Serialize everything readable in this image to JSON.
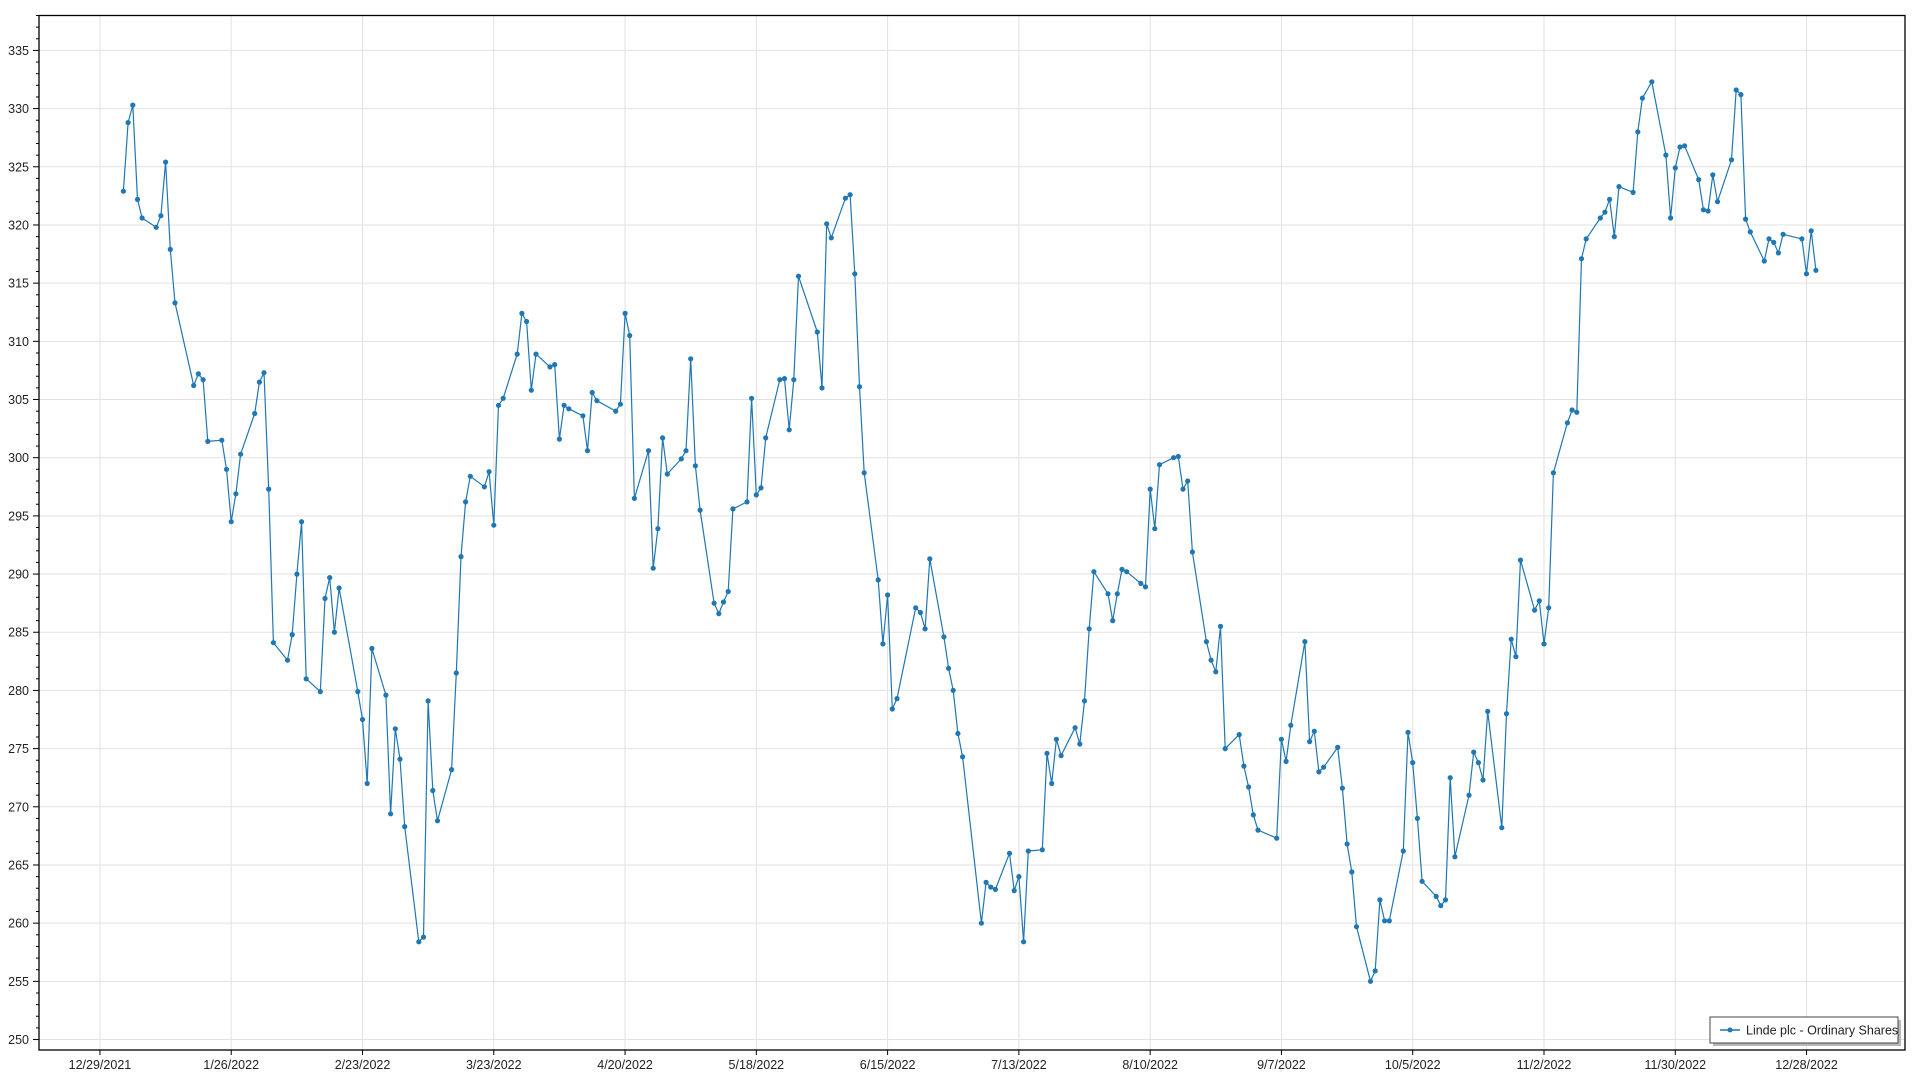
{
  "chart_data": {
    "type": "line",
    "title": "",
    "xlabel": "",
    "ylabel": "",
    "grid": true,
    "legend_position": "bottom-right",
    "ylim": [
      249.1,
      338.0
    ],
    "xlim": [
      "12/16/2021",
      "1/18/2023"
    ],
    "x_ticks": [
      "12/29/2021",
      "1/26/2022",
      "2/23/2022",
      "3/23/2022",
      "4/20/2022",
      "5/18/2022",
      "6/15/2022",
      "7/13/2022",
      "8/10/2022",
      "9/7/2022",
      "10/5/2022",
      "11/2/2022",
      "11/30/2022",
      "12/28/2022"
    ],
    "y_ticks": [
      250,
      255,
      260,
      265,
      270,
      275,
      280,
      285,
      290,
      295,
      300,
      305,
      310,
      315,
      320,
      325,
      330,
      335
    ],
    "series": [
      {
        "name": "Linde plc - Ordinary Shares",
        "color": "#1f77b4",
        "x": [
          "1/3/2022",
          "1/4/2022",
          "1/5/2022",
          "1/6/2022",
          "1/7/2022",
          "1/10/2022",
          "1/11/2022",
          "1/12/2022",
          "1/13/2022",
          "1/14/2022",
          "1/18/2022",
          "1/19/2022",
          "1/20/2022",
          "1/21/2022",
          "1/24/2022",
          "1/25/2022",
          "1/26/2022",
          "1/27/2022",
          "1/28/2022",
          "1/31/2022",
          "2/1/2022",
          "2/2/2022",
          "2/3/2022",
          "2/4/2022",
          "2/7/2022",
          "2/8/2022",
          "2/9/2022",
          "2/10/2022",
          "2/11/2022",
          "2/14/2022",
          "2/15/2022",
          "2/16/2022",
          "2/17/2022",
          "2/18/2022",
          "2/22/2022",
          "2/23/2022",
          "2/24/2022",
          "2/25/2022",
          "2/28/2022",
          "3/1/2022",
          "3/2/2022",
          "3/3/2022",
          "3/4/2022",
          "3/7/2022",
          "3/8/2022",
          "3/9/2022",
          "3/10/2022",
          "3/11/2022",
          "3/14/2022",
          "3/15/2022",
          "3/16/2022",
          "3/17/2022",
          "3/18/2022",
          "3/21/2022",
          "3/22/2022",
          "3/23/2022",
          "3/24/2022",
          "3/25/2022",
          "3/28/2022",
          "3/29/2022",
          "3/30/2022",
          "3/31/2022",
          "4/1/2022",
          "4/4/2022",
          "4/5/2022",
          "4/6/2022",
          "4/7/2022",
          "4/8/2022",
          "4/11/2022",
          "4/12/2022",
          "4/13/2022",
          "4/14/2022",
          "4/18/2022",
          "4/19/2022",
          "4/20/2022",
          "4/21/2022",
          "4/22/2022",
          "4/25/2022",
          "4/26/2022",
          "4/27/2022",
          "4/28/2022",
          "4/29/2022",
          "5/2/2022",
          "5/3/2022",
          "5/4/2022",
          "5/5/2022",
          "5/6/2022",
          "5/9/2022",
          "5/10/2022",
          "5/11/2022",
          "5/12/2022",
          "5/13/2022",
          "5/16/2022",
          "5/17/2022",
          "5/18/2022",
          "5/19/2022",
          "5/20/2022",
          "5/23/2022",
          "5/24/2022",
          "5/25/2022",
          "5/26/2022",
          "5/27/2022",
          "5/31/2022",
          "6/1/2022",
          "6/2/2022",
          "6/3/2022",
          "6/6/2022",
          "6/7/2022",
          "6/8/2022",
          "6/9/2022",
          "6/10/2022",
          "6/13/2022",
          "6/14/2022",
          "6/15/2022",
          "6/16/2022",
          "6/17/2022",
          "6/21/2022",
          "6/22/2022",
          "6/23/2022",
          "6/24/2022",
          "6/27/2022",
          "6/28/2022",
          "6/29/2022",
          "6/30/2022",
          "7/1/2022",
          "7/5/2022",
          "7/6/2022",
          "7/7/2022",
          "7/8/2022",
          "7/11/2022",
          "7/12/2022",
          "7/13/2022",
          "7/14/2022",
          "7/15/2022",
          "7/18/2022",
          "7/19/2022",
          "7/20/2022",
          "7/21/2022",
          "7/22/2022",
          "7/25/2022",
          "7/26/2022",
          "7/27/2022",
          "7/28/2022",
          "7/29/2022",
          "8/1/2022",
          "8/2/2022",
          "8/3/2022",
          "8/4/2022",
          "8/5/2022",
          "8/8/2022",
          "8/9/2022",
          "8/10/2022",
          "8/11/2022",
          "8/12/2022",
          "8/15/2022",
          "8/16/2022",
          "8/17/2022",
          "8/18/2022",
          "8/19/2022",
          "8/22/2022",
          "8/23/2022",
          "8/24/2022",
          "8/25/2022",
          "8/26/2022",
          "8/29/2022",
          "8/30/2022",
          "8/31/2022",
          "9/1/2022",
          "9/2/2022",
          "9/6/2022",
          "9/7/2022",
          "9/8/2022",
          "9/9/2022",
          "9/12/2022",
          "9/13/2022",
          "9/14/2022",
          "9/15/2022",
          "9/16/2022",
          "9/19/2022",
          "9/20/2022",
          "9/21/2022",
          "9/22/2022",
          "9/23/2022",
          "9/26/2022",
          "9/27/2022",
          "9/28/2022",
          "9/29/2022",
          "9/30/2022",
          "10/3/2022",
          "10/4/2022",
          "10/5/2022",
          "10/6/2022",
          "10/7/2022",
          "10/10/2022",
          "10/11/2022",
          "10/12/2022",
          "10/13/2022",
          "10/14/2022",
          "10/17/2022",
          "10/18/2022",
          "10/19/2022",
          "10/20/2022",
          "10/21/2022",
          "10/24/2022",
          "10/25/2022",
          "10/26/2022",
          "10/27/2022",
          "10/28/2022",
          "10/31/2022",
          "11/1/2022",
          "11/2/2022",
          "11/3/2022",
          "11/4/2022",
          "11/7/2022",
          "11/8/2022",
          "11/9/2022",
          "11/10/2022",
          "11/11/2022",
          "11/14/2022",
          "11/15/2022",
          "11/16/2022",
          "11/17/2022",
          "11/18/2022",
          "11/21/2022",
          "11/22/2022",
          "11/23/2022",
          "11/25/2022",
          "11/28/2022",
          "11/29/2022",
          "11/30/2022",
          "12/1/2022",
          "12/2/2022",
          "12/5/2022",
          "12/6/2022",
          "12/7/2022",
          "12/8/2022",
          "12/9/2022",
          "12/12/2022",
          "12/13/2022",
          "12/14/2022",
          "12/15/2022",
          "12/16/2022",
          "12/19/2022",
          "12/20/2022",
          "12/21/2022",
          "12/22/2022",
          "12/23/2022",
          "12/27/2022",
          "12/28/2022",
          "12/29/2022",
          "12/30/2022"
        ],
        "y": [
          322.9,
          328.8,
          330.3,
          322.2,
          320.6,
          319.8,
          320.8,
          325.4,
          317.9,
          313.3,
          306.2,
          307.2,
          306.7,
          301.4,
          301.5,
          299.0,
          294.5,
          296.9,
          300.3,
          303.8,
          306.5,
          307.3,
          297.3,
          284.1,
          282.6,
          284.8,
          290.0,
          294.5,
          281.0,
          279.9,
          287.9,
          289.7,
          285.0,
          288.8,
          279.9,
          277.5,
          272.0,
          283.6,
          279.6,
          269.4,
          276.7,
          274.1,
          268.3,
          258.4,
          258.8,
          279.1,
          271.4,
          268.8,
          273.2,
          281.5,
          291.5,
          296.2,
          298.4,
          297.5,
          298.8,
          294.2,
          304.5,
          305.1,
          308.9,
          312.4,
          311.7,
          305.8,
          308.9,
          307.8,
          308.0,
          301.6,
          304.5,
          304.2,
          303.6,
          300.6,
          305.6,
          304.9,
          304.0,
          304.6,
          312.4,
          310.5,
          296.5,
          300.6,
          290.5,
          293.9,
          301.7,
          298.6,
          299.9,
          300.6,
          308.5,
          299.3,
          295.5,
          287.5,
          286.6,
          287.6,
          288.5,
          295.6,
          296.2,
          305.1,
          296.8,
          297.4,
          301.7,
          306.7,
          306.8,
          302.4,
          306.7,
          315.6,
          310.8,
          306.0,
          320.1,
          318.9,
          322.3,
          322.6,
          315.8,
          306.1,
          298.7,
          289.5,
          284.0,
          288.2,
          278.4,
          279.3,
          287.1,
          286.7,
          285.3,
          291.3,
          284.6,
          281.9,
          280.0,
          276.3,
          274.3,
          260.0,
          263.5,
          263.1,
          262.9,
          266.0,
          262.8,
          264.0,
          258.4,
          266.2,
          266.3,
          274.6,
          272.0,
          275.8,
          274.4,
          276.8,
          275.4,
          279.1,
          285.3,
          290.2,
          288.3,
          286.0,
          288.3,
          290.4,
          290.2,
          289.2,
          288.9,
          297.3,
          293.9,
          299.4,
          300.0,
          300.1,
          297.3,
          298.0,
          291.9,
          284.2,
          282.6,
          281.6,
          285.5,
          275.0,
          276.2,
          273.5,
          271.7,
          269.3,
          268.0,
          267.3,
          275.8,
          273.9,
          277.0,
          284.2,
          275.6,
          276.5,
          273.0,
          273.4,
          275.1,
          271.6,
          266.8,
          264.4,
          259.7,
          255.0,
          255.9,
          262.0,
          260.2,
          260.2,
          266.2,
          276.4,
          273.8,
          269.0,
          263.6,
          262.3,
          261.5,
          262.0,
          272.5,
          265.7,
          271.0,
          274.7,
          273.8,
          272.3,
          278.2,
          268.2,
          278.0,
          284.4,
          282.9,
          291.2,
          286.9,
          287.7,
          284.0,
          287.1,
          298.7,
          303.0,
          304.1,
          303.9,
          317.1,
          318.8,
          320.6,
          321.1,
          322.2,
          319.0,
          323.3,
          322.8,
          328.0,
          330.9,
          332.3,
          326.0,
          320.6,
          324.9,
          326.7,
          326.8,
          323.9,
          321.3,
          321.2,
          324.3,
          322.0,
          325.6,
          331.6,
          331.2,
          320.5,
          319.4,
          316.9,
          318.8,
          318.5,
          317.6,
          319.2,
          318.8,
          315.8,
          319.5,
          316.1
        ]
      }
    ]
  },
  "legend": {
    "label": "Linde plc - Ordinary Shares"
  }
}
